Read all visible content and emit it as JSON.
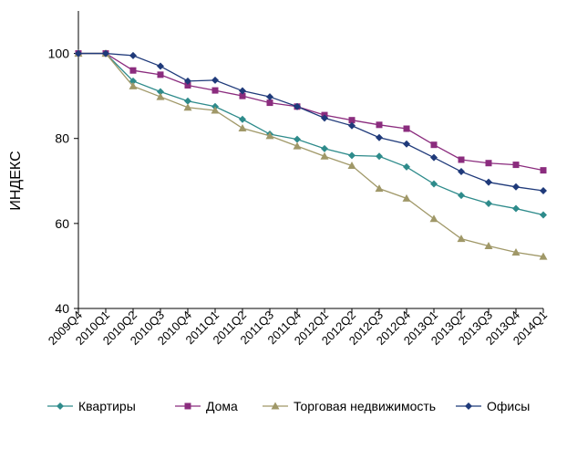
{
  "chart_data": {
    "type": "line",
    "title": "",
    "xlabel": "",
    "ylabel": "ИНДЕКС",
    "ylim": [
      40,
      110
    ],
    "yticks": [
      40,
      60,
      80,
      100
    ],
    "grid": false,
    "legend_position": "bottom",
    "categories": [
      "2009Q4",
      "2010Q1",
      "2010Q2",
      "2010Q3",
      "2010Q4",
      "2011Q1",
      "2011Q2",
      "2011Q3",
      "2011Q4",
      "2012Q1",
      "2012Q2",
      "2012Q3",
      "2012Q4",
      "2013Q1",
      "2013Q2",
      "2013Q3",
      "2013Q4",
      "2014Q1"
    ],
    "series": [
      {
        "name": "Квартиры",
        "color": "#2E8B8B",
        "marker": "diamond",
        "values": [
          100,
          100,
          93.5,
          91,
          88.8,
          87.5,
          84.5,
          81,
          79.8,
          77.6,
          76,
          75.8,
          73.3,
          69.3,
          66.6,
          64.7,
          63.5,
          62
        ]
      },
      {
        "name": "Дома",
        "color": "#8B2C7E",
        "marker": "square",
        "values": [
          100,
          100,
          96,
          95,
          92.5,
          91.3,
          90,
          88.4,
          87.5,
          85.5,
          84.3,
          83.2,
          82.3,
          78.5,
          75,
          74.2,
          73.8,
          72.5
        ]
      },
      {
        "name": "Торговая недвижимость",
        "color": "#A09868",
        "marker": "triangle",
        "values": [
          100,
          100,
          92.3,
          89.8,
          87.3,
          86.6,
          82.4,
          80.6,
          78.2,
          75.8,
          73.6,
          68.2,
          65.9,
          61.1,
          56.4,
          54.7,
          53.2,
          52.2
        ]
      },
      {
        "name": "Офисы",
        "color": "#1F3A7A",
        "marker": "diamond",
        "values": [
          100,
          100,
          99.5,
          97,
          93.5,
          93.7,
          91.2,
          89.8,
          87.5,
          84.8,
          83,
          80.2,
          78.7,
          75.5,
          72.2,
          69.7,
          68.6,
          67.7
        ]
      }
    ]
  }
}
